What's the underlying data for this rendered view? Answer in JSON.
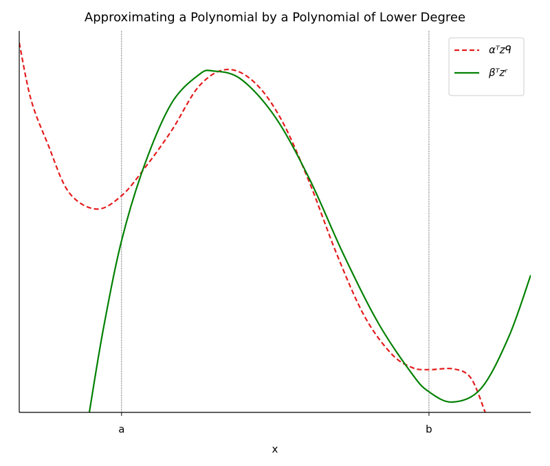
{
  "chart_data": {
    "type": "line",
    "title": "Approximating a Polynomial by a Polynomial of Lower Degree",
    "xlabel": "x",
    "xlim": [
      0,
      1
    ],
    "ylim": [
      0,
      1
    ],
    "xticks": [
      {
        "value": 0.2,
        "label": "a"
      },
      {
        "value": 0.801,
        "label": "b"
      }
    ],
    "xgrid": true,
    "legend": "upper right",
    "series": [
      {
        "name": "αᵀzᑫ",
        "color": "#e41a1c",
        "dash": true,
        "x": [
          0,
          0.023,
          0.056,
          0.097,
          0.151,
          0.2,
          0.245,
          0.298,
          0.352,
          0.406,
          0.46,
          0.513,
          0.567,
          0.621,
          0.675,
          0.728,
          0.769,
          0.801,
          0.849,
          0.883,
          0.911
        ],
        "values": [
          0.969,
          0.82,
          0.703,
          0.577,
          0.533,
          0.568,
          0.64,
          0.739,
          0.856,
          0.899,
          0.865,
          0.766,
          0.604,
          0.414,
          0.252,
          0.153,
          0.117,
          0.112,
          0.114,
          0.09,
          0
        ]
      },
      {
        "name": "βᵀzʳ",
        "color": "#008000",
        "dash": false,
        "x": [
          0.137,
          0.164,
          0.2,
          0.245,
          0.298,
          0.352,
          0.379,
          0.433,
          0.5,
          0.567,
          0.634,
          0.702,
          0.769,
          0.801,
          0.847,
          0.903,
          0.957,
          1
        ],
        "values": [
          0,
          0.216,
          0.45,
          0.649,
          0.811,
          0.886,
          0.895,
          0.874,
          0.775,
          0.613,
          0.414,
          0.234,
          0.099,
          0.054,
          0.027,
          0.063,
          0.198,
          0.36
        ]
      }
    ]
  }
}
